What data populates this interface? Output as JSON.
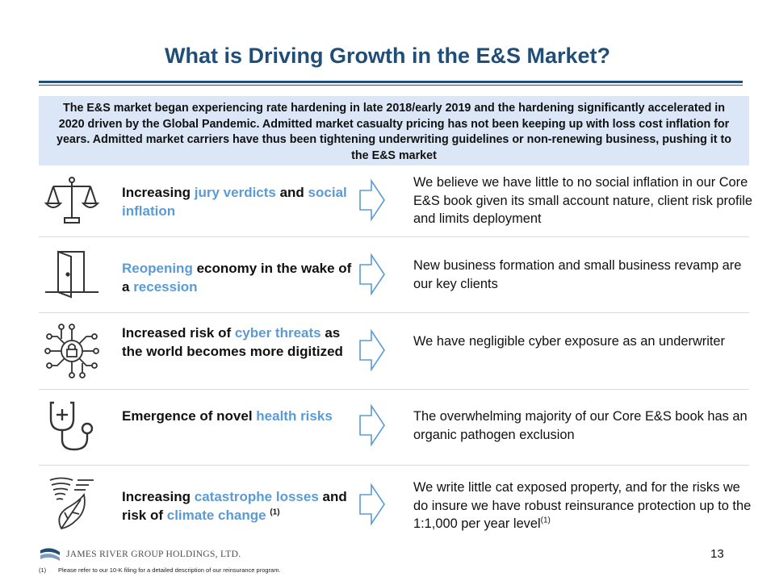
{
  "title": "What is Driving Growth in the E&S Market?",
  "intro": "The E&S market began experiencing rate hardening in late 2018/early 2019 and the hardening significantly accelerated in 2020 driven by the Global Pandemic. Admitted market casualty pricing has not been keeping up with loss cost inflation for years. Admitted market carriers have thus been tightening underwriting guidelines or non-renewing business, pushing it to the E&S market",
  "rows": [
    {
      "icon": "scales-of-justice-icon",
      "left": [
        {
          "text": "Increasing ",
          "highlight": false
        },
        {
          "text": "jury verdicts",
          "highlight": true
        },
        {
          "text": " and ",
          "highlight": false
        },
        {
          "text": "social inflation",
          "highlight": true
        }
      ],
      "right": "We believe we have little to no social inflation in our Core E&S book given its small account nature, client risk profile and limits deployment"
    },
    {
      "icon": "open-door-icon",
      "left": [
        {
          "text": "Reopening",
          "highlight": true
        },
        {
          "text": " economy in the wake of a ",
          "highlight": false
        },
        {
          "text": "recession",
          "highlight": true
        }
      ],
      "right": "New business formation and small business revamp are our key clients"
    },
    {
      "icon": "cyber-lock-network-icon",
      "left": [
        {
          "text": "Increased risk of ",
          "highlight": false
        },
        {
          "text": "cyber threats",
          "highlight": true
        },
        {
          "text": " as the world becomes more digitized",
          "highlight": false
        }
      ],
      "right": "We have negligible cyber exposure as an underwriter"
    },
    {
      "icon": "stethoscope-icon",
      "left": [
        {
          "text": "Emergence of novel ",
          "highlight": false
        },
        {
          "text": "health risks",
          "highlight": true
        }
      ],
      "right": "The overwhelming majority of our Core E&S book has an organic pathogen exclusion"
    },
    {
      "icon": "tornado-leaf-icon",
      "left": [
        {
          "text": "Increasing ",
          "highlight": false
        },
        {
          "text": "catastrophe losses",
          "highlight": true
        },
        {
          "text": " and risk of ",
          "highlight": false
        },
        {
          "text": "climate change",
          "highlight": true
        }
      ],
      "left_sup": "(1)",
      "right": "We write little cat exposed property, and for the risks we do insure we have robust reinsurance protection up to the 1:1,000 per year level",
      "right_sup": "(1)"
    }
  ],
  "logo_text": "JAMES RIVER GROUP HOLDINGS, LTD.",
  "page_number": "13",
  "footnote": {
    "marker": "(1)",
    "text": "Please refer to our 10-K filing for a detailed description of our reinsurance program."
  },
  "colors": {
    "title": "#1f4e79",
    "highlight": "#5b9bd5",
    "intro_bg": "#dbe7f6",
    "arrow": "#5b9bd5"
  }
}
